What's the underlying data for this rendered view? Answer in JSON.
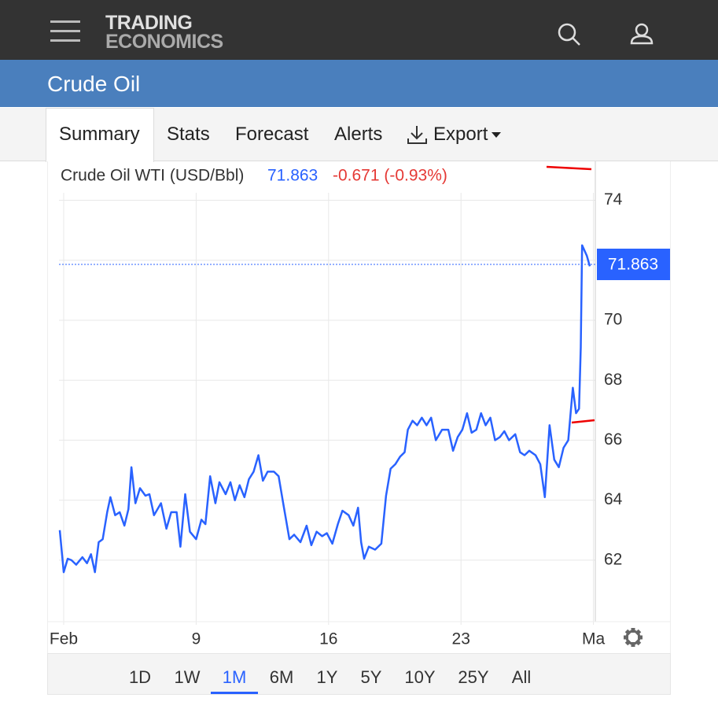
{
  "header": {
    "logo_line1": "TRADING",
    "logo_line2": "ECONOMICS"
  },
  "page_title": "Crude Oil",
  "tabs": [
    "Summary",
    "Stats",
    "Forecast",
    "Alerts",
    "Export"
  ],
  "active_tab": 0,
  "chart_data": {
    "type": "line",
    "title": "Crude Oil WTI (USD/Bbl)",
    "last": 71.863,
    "change": "-0.671 (-0.93%)",
    "series": [
      {
        "name": "Crude Oil WTI",
        "color": "#2962ff",
        "x": [
          1.79,
          2.0,
          2.21,
          2.41,
          2.66,
          2.99,
          3.23,
          3.44,
          3.65,
          3.85,
          4.06,
          4.3,
          4.47,
          4.72,
          4.96,
          5.21,
          5.42,
          5.58,
          5.79,
          6.03,
          6.32,
          6.53,
          6.77,
          7.14,
          7.43,
          7.68,
          7.97,
          8.17,
          8.42,
          8.67,
          9.0,
          9.28,
          9.49,
          9.74,
          10.02,
          10.23,
          10.56,
          10.81,
          11.05,
          11.3,
          11.55,
          11.79,
          12.04,
          12.29,
          12.53,
          12.78,
          13.11,
          13.36,
          13.6,
          13.93,
          14.18,
          14.51,
          14.84,
          15.09,
          15.37,
          15.66,
          15.91,
          16.2,
          16.49,
          16.73,
          17.06,
          17.31,
          17.56,
          17.72,
          17.88,
          18.13,
          18.46,
          18.79,
          19.04,
          19.28,
          19.53,
          19.78,
          20.02,
          20.19,
          20.44,
          20.68,
          20.93,
          21.18,
          21.42,
          21.67,
          22.0,
          22.33,
          22.58,
          22.82,
          23.07,
          23.32,
          23.56,
          23.81,
          24.06,
          24.3,
          24.55,
          24.8,
          25.05,
          25.29,
          25.54,
          25.87,
          26.12,
          26.36,
          26.61,
          26.94,
          27.19,
          27.43,
          27.68,
          27.93,
          28.17,
          28.42,
          28.67,
          28.91,
          29.08,
          29.24,
          29.33,
          29.4,
          29.65,
          29.81
        ],
        "values": [
          63.0,
          61.6,
          62.05,
          62.0,
          61.85,
          62.1,
          61.9,
          62.2,
          61.6,
          62.6,
          62.7,
          63.6,
          64.1,
          63.5,
          63.6,
          63.15,
          63.7,
          65.1,
          63.9,
          64.4,
          64.15,
          64.2,
          63.5,
          63.9,
          63.05,
          63.6,
          63.6,
          62.45,
          64.2,
          62.95,
          62.7,
          63.35,
          63.2,
          64.8,
          63.9,
          64.6,
          64.2,
          64.6,
          64.0,
          64.5,
          64.1,
          64.7,
          64.95,
          65.5,
          64.65,
          64.95,
          64.95,
          64.8,
          63.9,
          62.7,
          62.85,
          62.6,
          63.15,
          62.5,
          62.95,
          62.8,
          62.9,
          62.55,
          63.2,
          63.65,
          63.5,
          63.15,
          63.75,
          62.6,
          62.05,
          62.45,
          62.35,
          62.55,
          64.15,
          65.05,
          65.2,
          65.45,
          65.6,
          66.35,
          66.65,
          66.5,
          66.75,
          66.5,
          66.75,
          66.0,
          66.35,
          66.35,
          65.65,
          66.1,
          66.35,
          66.9,
          66.25,
          66.35,
          66.9,
          66.5,
          66.75,
          66.0,
          66.1,
          66.3,
          66.0,
          66.2,
          65.6,
          65.5,
          65.65,
          65.5,
          65.2,
          64.1,
          66.5,
          65.35,
          65.1,
          65.75,
          66.0,
          67.75,
          66.9,
          67.05,
          69.1,
          72.5,
          72.15,
          71.8
        ]
      }
    ],
    "xlim": [
      1.75,
      30.1
    ],
    "ylim": [
      59.95,
      75.3
    ],
    "xticks": [
      {
        "value": 2,
        "label": "Feb"
      },
      9,
      16,
      23,
      {
        "value": 30,
        "label": "Ma"
      }
    ],
    "yticks": [
      62,
      64,
      66,
      68,
      70,
      72,
      74
    ],
    "ytick_labels_shown": [
      62,
      64,
      66,
      68,
      70,
      74
    ],
    "grid": true
  },
  "range_buttons": [
    "1D",
    "1W",
    "1M",
    "6M",
    "1Y",
    "5Y",
    "10Y",
    "25Y",
    "All"
  ],
  "active_range": 2
}
